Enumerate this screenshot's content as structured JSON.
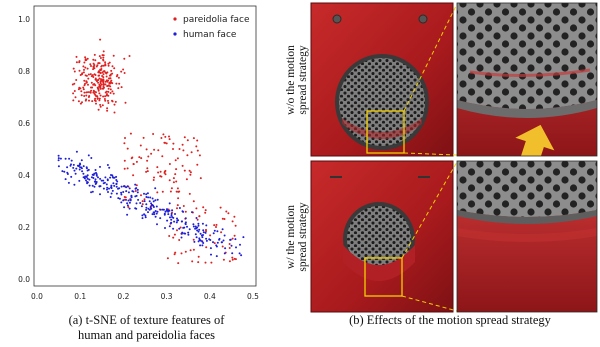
{
  "chart_data": {
    "type": "scatter",
    "title": "",
    "xlabel": "",
    "ylabel": "",
    "xlim": [
      0.0,
      0.5
    ],
    "ylim": [
      0.0,
      1.0
    ],
    "x_ticks": [
      "0.0",
      "0.1",
      "0.2",
      "0.3",
      "0.4",
      "0.5"
    ],
    "y_ticks": [
      "0.0",
      "0.2",
      "0.4",
      "0.6",
      "0.8",
      "1.0"
    ],
    "legend_position": "top-right",
    "series": [
      {
        "name": "pareidolia face",
        "color": "#e02020",
        "count": 430,
        "cluster": {
          "x_range": [
            0.02,
            0.48
          ],
          "y_range": [
            0.05,
            0.99
          ],
          "dense_center": [
            0.13,
            0.78
          ]
        }
      },
      {
        "name": "human face",
        "color": "#1f1fd6",
        "count": 330,
        "cluster": {
          "x_range": [
            0.05,
            0.48
          ],
          "y_range": [
            0.04,
            0.48
          ],
          "dense_center": [
            0.3,
            0.28
          ]
        }
      }
    ]
  },
  "panel_b": {
    "row_top_label_line1": "w/o the motion",
    "row_top_label_line2": "spread strategy",
    "row_bottom_label_line1": "w/ the motion",
    "row_bottom_label_line2": "spread strategy",
    "device_color": "#b21d1f",
    "highlight_color": "#f2d000",
    "arrow_color": "#f2bf2c"
  },
  "captions": {
    "a_line1": "(a) t-SNE of texture features of",
    "a_line2": "human and pareidolia faces",
    "b": "(b) Effects of the motion spread strategy"
  }
}
